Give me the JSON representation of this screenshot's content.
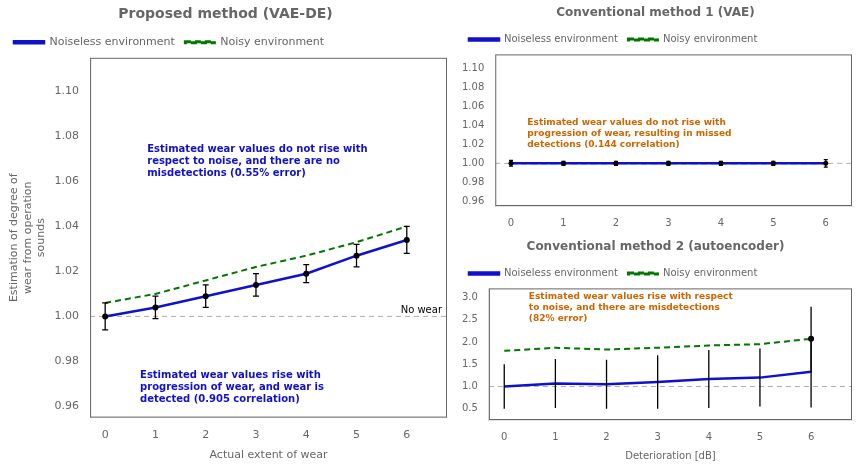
{
  "chart_data": [
    {
      "type": "line",
      "title": "Proposed method (VAE-DE)",
      "xlabel": "Actual extent of wear",
      "ylabel": "Estimation of degree of\nwear from operation\nsounds",
      "x": [
        0,
        1,
        2,
        3,
        4,
        5,
        6
      ],
      "xlim": [
        -0.3,
        6.8
      ],
      "xticks": [
        0,
        1,
        2,
        3,
        4,
        5,
        6
      ],
      "ylim": [
        0.955,
        1.115
      ],
      "yticks": [
        0.96,
        0.98,
        {
          "value": 1.0,
          "label": "1.00"
        },
        1.02,
        1.04,
        1.06,
        1.08,
        {
          "value": 1.1,
          "label": "1.10"
        }
      ],
      "grid": false,
      "legend": "upper left",
      "series": [
        {
          "name": "Noiseless environment",
          "color": "#1111cc",
          "line_style": "solid",
          "marker": "o",
          "values": [
            1.0,
            1.004,
            1.009,
            1.014,
            1.019,
            1.027,
            1.034
          ],
          "error": [
            0.006,
            0.005,
            0.005,
            0.005,
            0.004,
            0.005,
            0.006
          ]
        },
        {
          "name": "Noisy environment",
          "color": "#007700",
          "line_style": "dashed",
          "values": [
            1.006,
            1.01,
            1.016,
            1.022,
            1.027,
            1.033,
            1.04
          ]
        }
      ],
      "hlines": [
        {
          "value": 1.0,
          "label": "No wear",
          "color": "#999999"
        }
      ],
      "annotations": [
        {
          "text": "Estimated wear values do not rise with\nrespect to noise, and there are no\nmisdetections (0.55% error)",
          "color": "#1111cc"
        },
        {
          "text": "Estimated wear values rise with\nprogression of wear, and wear is\ndetected (0.905 correlation)",
          "color": "#1111cc"
        }
      ]
    },
    {
      "type": "line",
      "title": "Conventional method 1 (VAE)",
      "x": [
        0,
        1,
        2,
        3,
        4,
        5,
        6
      ],
      "xlim": [
        -0.3,
        6.5
      ],
      "xticks": [
        0,
        1,
        2,
        3,
        4,
        5,
        6
      ],
      "ylim": [
        0.955,
        1.115
      ],
      "yticks": [
        0.96,
        0.98,
        {
          "value": 1.0,
          "label": "1.00"
        },
        1.02,
        1.04,
        1.06,
        1.08,
        {
          "value": 1.1,
          "label": "1.10"
        }
      ],
      "grid": false,
      "legend": "upper left",
      "series": [
        {
          "name": "Noiseless environment",
          "color": "#1111cc",
          "line_style": "solid",
          "marker": "o",
          "values": [
            1.0,
            1.0,
            1.0,
            1.0,
            1.0,
            1.0,
            1.0
          ],
          "error": [
            0.003,
            0.002,
            0.002,
            0.002,
            0.002,
            0.002,
            0.004
          ]
        },
        {
          "name": "Noisy environment",
          "color": "#007700",
          "line_style": "dashed",
          "values": [
            1.0,
            1.0,
            1.0,
            1.0,
            1.0,
            1.0,
            1.0
          ]
        }
      ],
      "hlines": [
        {
          "value": 1.0,
          "color": "#999999"
        }
      ],
      "annotations": [
        {
          "text": "Estimated wear values do not rise with\nprogression of wear, resulting in missed\ndetections (0.144 correlation)",
          "color": "#cc6600"
        }
      ]
    },
    {
      "type": "line",
      "title": "Conventional method 2 (autoencoder)",
      "xlabel": "Deterioration [dB]",
      "x": [
        0,
        1,
        2,
        3,
        4,
        5,
        6
      ],
      "xlim": [
        -0.3,
        6.8
      ],
      "xticks": [
        0,
        1,
        2,
        3,
        4,
        5,
        6
      ],
      "ylim": [
        0.25,
        3.2
      ],
      "yticks": [
        0.5,
        {
          "value": 1.0,
          "label": "1.0"
        },
        1.5,
        {
          "value": 2.0,
          "label": "2.0"
        },
        2.5,
        {
          "value": 3.0,
          "label": "3.0"
        }
      ],
      "grid": false,
      "legend": "upper left",
      "series": [
        {
          "name": "Noiseless environment",
          "color": "#1111cc",
          "line_style": "solid",
          "marker": "none",
          "values": [
            1.0,
            1.07,
            1.05,
            1.1,
            1.17,
            1.2,
            1.33
          ],
          "error_lo": [
            0.5,
            0.55,
            0.55,
            0.6,
            0.65,
            0.65,
            0.8
          ],
          "error_hi": [
            0.5,
            0.55,
            0.55,
            0.6,
            0.65,
            0.65,
            0.8
          ]
        },
        {
          "name": "Noisy environment",
          "color": "#007700",
          "line_style": "dashed",
          "marker": "o",
          "values": [
            1.8,
            1.87,
            1.83,
            1.87,
            1.92,
            1.95,
            2.07
          ],
          "error_lo": [
            null,
            null,
            null,
            null,
            null,
            null,
            0.75
          ],
          "error_hi": [
            null,
            null,
            null,
            null,
            null,
            null,
            0.72
          ]
        }
      ],
      "hlines": [
        {
          "value": 1.0,
          "color": "#999999"
        }
      ],
      "annotations": [
        {
          "text": "Estimated wear values rise with respect\nto noise, and there are misdetections\n(82% error)",
          "color": "#cc6600"
        }
      ]
    }
  ]
}
